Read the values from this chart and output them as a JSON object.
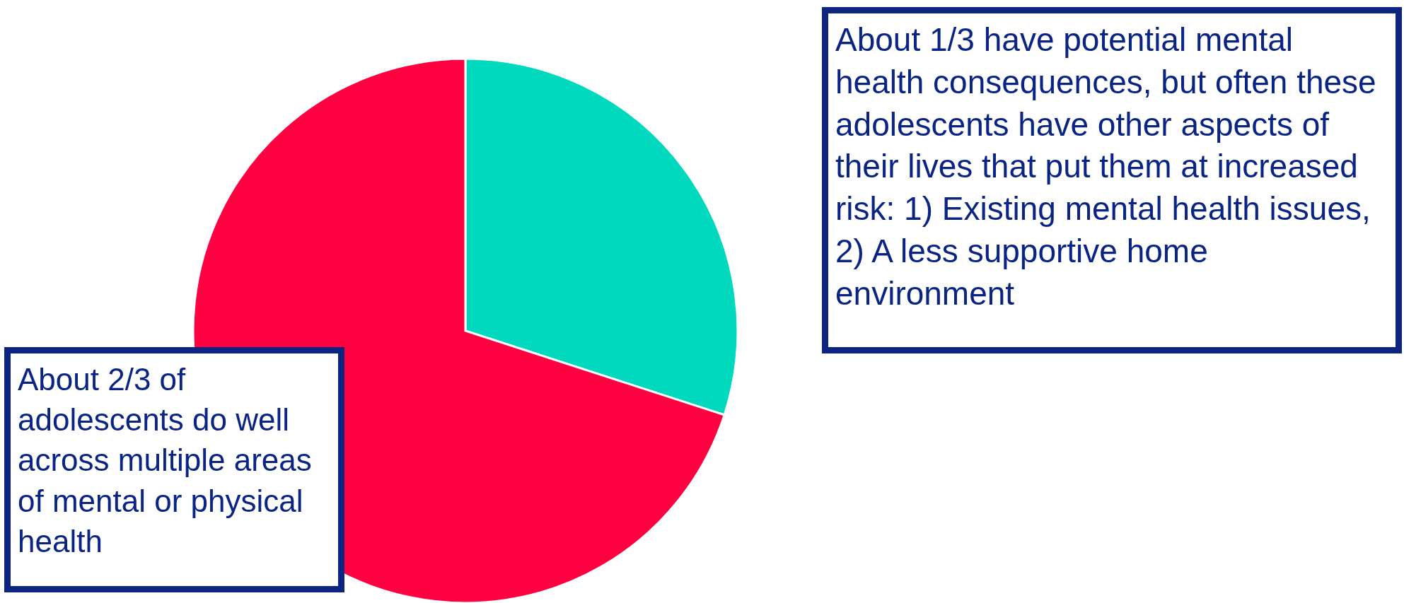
{
  "chart_data": {
    "type": "pie",
    "categories": [
      null,
      null
    ],
    "values": [
      30,
      70
    ],
    "colors": [
      "#00d9be",
      "#ff0040"
    ],
    "annotations": [
      "About 2/3 of adolescents do well across multiple areas of mental or physical health",
      "About 1/3 have potential mental health consequences, but often these adolescents have other aspects of their lives that put them at increased risk: 1) Existing mental health issues, 2) A less supportive home environment"
    ]
  }
}
